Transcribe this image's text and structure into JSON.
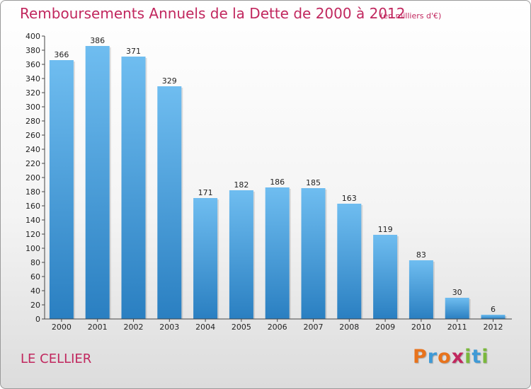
{
  "header": {
    "title": "Remboursements Annuels de la Dette de 2000 à 2012",
    "subtitle": "(en milliers d'€)"
  },
  "footer": {
    "commune": "LE CELLIER",
    "brand": "Proxiti"
  },
  "colors": {
    "title": "#c1275e",
    "bar_top": "#6fbdf0",
    "bar_bottom": "#2a7fc1",
    "brand_letters": [
      "#e8731c",
      "#3f9ad6",
      "#e8731c",
      "#c1275e",
      "#7ab83c",
      "#3f9ad6",
      "#7ab83c"
    ]
  },
  "chart_data": {
    "type": "bar",
    "categories": [
      "2000",
      "2001",
      "2002",
      "2003",
      "2004",
      "2005",
      "2006",
      "2007",
      "2008",
      "2009",
      "2010",
      "2011",
      "2012"
    ],
    "values": [
      366,
      386,
      371,
      329,
      171,
      182,
      186,
      185,
      163,
      119,
      83,
      30,
      6
    ],
    "ylim": [
      0,
      400
    ],
    "ytick_step": 20,
    "grid": false,
    "value_labels": true
  }
}
